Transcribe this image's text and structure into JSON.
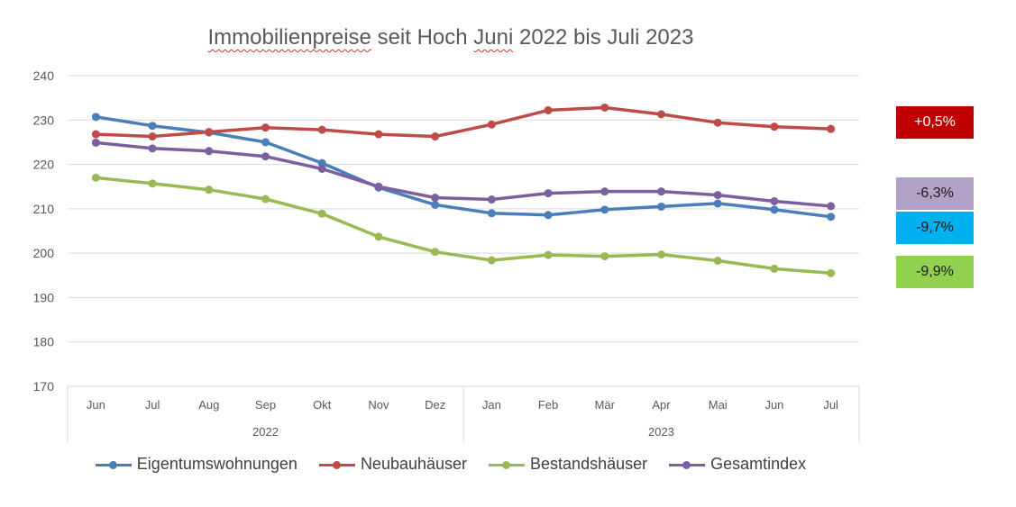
{
  "chart_data": {
    "type": "line",
    "title": "Immobilienpreise seit Hoch Juni 2022 bis Juli 2023",
    "title_parts": [
      "Immobilienpreise",
      " seit Hoch ",
      "Juni",
      " 2022 bis Juli 2023"
    ],
    "categories": [
      "Jun",
      "Jul",
      "Aug",
      "Sep",
      "Okt",
      "Nov",
      "Dez",
      "Jan",
      "Feb",
      "Mär",
      "Apr",
      "Mai",
      "Jun",
      "Jul"
    ],
    "year_groups": [
      {
        "label": "2022",
        "count": 7
      },
      {
        "label": "2023",
        "count": 7
      }
    ],
    "ylim": [
      170,
      240
    ],
    "yticks": [
      "170",
      "180",
      "190",
      "200",
      "210",
      "220",
      "230",
      "240"
    ],
    "grid": true,
    "legend_position": "bottom",
    "series": [
      {
        "name": "Eigentumswohnungen",
        "color": "#4a7ebb",
        "values": [
          230.7,
          228.7,
          227.2,
          225.0,
          220.3,
          214.8,
          210.9,
          209.0,
          208.6,
          209.8,
          210.5,
          211.2,
          209.8,
          208.2
        ]
      },
      {
        "name": "Neubauhäuser",
        "color": "#be4b48",
        "values": [
          226.8,
          226.3,
          227.3,
          228.3,
          227.8,
          226.8,
          226.3,
          229.0,
          232.2,
          232.8,
          231.3,
          229.4,
          228.5,
          228.0
        ]
      },
      {
        "name": "Bestandshäuser",
        "color": "#98b954",
        "values": [
          217.0,
          215.7,
          214.3,
          212.2,
          208.9,
          203.7,
          200.3,
          198.4,
          199.6,
          199.3,
          199.7,
          198.3,
          196.5,
          195.5
        ]
      },
      {
        "name": "Gesamtindex",
        "color": "#7d5fa0",
        "values": [
          224.9,
          223.6,
          223.0,
          221.8,
          219.0,
          215.0,
          212.5,
          212.1,
          213.5,
          213.9,
          213.9,
          213.1,
          211.7,
          210.6
        ]
      }
    ],
    "annotations": [
      {
        "text": "+0,5%",
        "color": "#c00000",
        "series": "Neubauhäuser"
      },
      {
        "text": "-6,3%",
        "color": "#b3a2c7",
        "series": "Gesamtindex"
      },
      {
        "text": "-9,7%",
        "color": "#00b0f0",
        "series": "Eigentumswohnungen"
      },
      {
        "text": "-9,9%",
        "color": "#92d050",
        "series": "Bestandshäuser"
      }
    ]
  }
}
